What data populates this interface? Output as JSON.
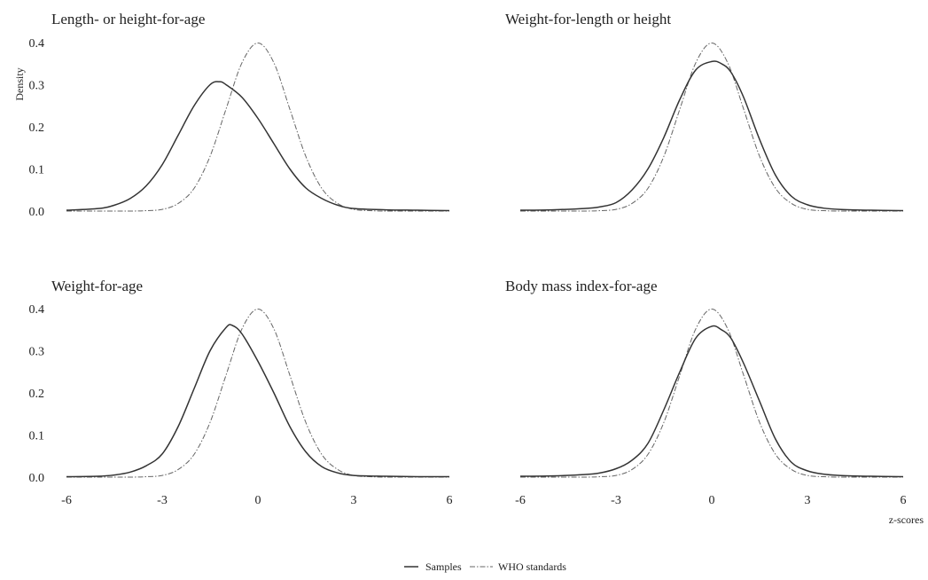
{
  "chart_data": {
    "type": "line",
    "ylabel": "Density",
    "xlabel": "z-scores",
    "xlim": [
      -6,
      6
    ],
    "ylim": [
      0,
      0.4
    ],
    "x_ticks": [
      -6,
      -3,
      0,
      3,
      6
    ],
    "y_ticks": [
      0.0,
      0.1,
      0.2,
      0.3,
      0.4
    ],
    "y_tick_labels": [
      "0.0",
      "0.1",
      "0.2",
      "0.3",
      "0.4"
    ],
    "x_tick_labels": [
      "-6",
      "-3",
      "0",
      "3",
      "6"
    ],
    "legend": {
      "placement": "bottom-center",
      "entries": [
        {
          "name": "Samples",
          "style": "solid"
        },
        {
          "name": "WHO standards",
          "style": "dash-dot"
        }
      ]
    },
    "grid": false,
    "panels": [
      {
        "title": "Length- or height-for-age",
        "series": [
          {
            "name": "Samples",
            "x": [
              -6,
              -5,
              -4.5,
              -4,
              -3.5,
              -3,
              -2.5,
              -2,
              -1.5,
              -1.2,
              -1,
              -0.5,
              0,
              0.5,
              1,
              1.5,
              2,
              2.5,
              3,
              4,
              5,
              6
            ],
            "y": [
              0.002,
              0.006,
              0.014,
              0.03,
              0.06,
              0.11,
              0.18,
              0.25,
              0.3,
              0.307,
              0.3,
              0.27,
              0.22,
              0.16,
              0.1,
              0.055,
              0.03,
              0.014,
              0.006,
              0.003,
              0.002,
              0.001
            ]
          },
          {
            "name": "WHO standards",
            "x": [
              -6,
              -5,
              -4,
              -3.5,
              -3,
              -2.5,
              -2,
              -1.5,
              -1,
              -0.5,
              0,
              0.5,
              1,
              1.5,
              2,
              2.5,
              3,
              3.5,
              4,
              5,
              6
            ],
            "y": [
              0,
              0,
              0,
              0.001,
              0.004,
              0.018,
              0.054,
              0.13,
              0.242,
              0.352,
              0.399,
              0.352,
              0.242,
              0.13,
              0.054,
              0.018,
              0.004,
              0.001,
              0,
              0,
              0
            ]
          }
        ]
      },
      {
        "title": "Weight-for-length or height",
        "series": [
          {
            "name": "Samples",
            "x": [
              -6,
              -5,
              -4,
              -3.5,
              -3,
              -2.5,
              -2,
              -1.5,
              -1,
              -0.5,
              0,
              0.3,
              0.6,
              1,
              1.5,
              2,
              2.5,
              3,
              3.5,
              4,
              5,
              6
            ],
            "y": [
              0.002,
              0.003,
              0.006,
              0.01,
              0.02,
              0.05,
              0.1,
              0.175,
              0.265,
              0.335,
              0.355,
              0.35,
              0.33,
              0.27,
              0.17,
              0.085,
              0.035,
              0.015,
              0.007,
              0.004,
              0.002,
              0.001
            ]
          },
          {
            "name": "WHO standards",
            "x": [
              -6,
              -5,
              -4,
              -3.5,
              -3,
              -2.5,
              -2,
              -1.5,
              -1,
              -0.5,
              0,
              0.5,
              1,
              1.5,
              2,
              2.5,
              3,
              3.5,
              4,
              5,
              6
            ],
            "y": [
              0,
              0,
              0,
              0.001,
              0.004,
              0.018,
              0.054,
              0.13,
              0.242,
              0.352,
              0.399,
              0.352,
              0.242,
              0.13,
              0.054,
              0.018,
              0.004,
              0.001,
              0,
              0,
              0
            ]
          }
        ]
      },
      {
        "title": "Weight-for-age",
        "series": [
          {
            "name": "Samples",
            "x": [
              -6,
              -5,
              -4.5,
              -4,
              -3.5,
              -3,
              -2.5,
              -2,
              -1.5,
              -1,
              -0.8,
              -0.5,
              0,
              0.5,
              1,
              1.5,
              2,
              2.5,
              3,
              4,
              5,
              6
            ],
            "y": [
              0.001,
              0.002,
              0.005,
              0.012,
              0.027,
              0.055,
              0.12,
              0.21,
              0.3,
              0.355,
              0.36,
              0.34,
              0.275,
              0.2,
              0.12,
              0.06,
              0.025,
              0.01,
              0.004,
              0.002,
              0.001,
              0.001
            ]
          },
          {
            "name": "WHO standards",
            "x": [
              -6,
              -5,
              -4,
              -3.5,
              -3,
              -2.5,
              -2,
              -1.5,
              -1,
              -0.5,
              0,
              0.5,
              1,
              1.5,
              2,
              2.5,
              3,
              3.5,
              4,
              5,
              6
            ],
            "y": [
              0,
              0,
              0,
              0.001,
              0.004,
              0.018,
              0.054,
              0.13,
              0.242,
              0.352,
              0.399,
              0.352,
              0.242,
              0.13,
              0.054,
              0.018,
              0.004,
              0.001,
              0,
              0,
              0
            ]
          }
        ]
      },
      {
        "title": "Body mass index-for-age",
        "series": [
          {
            "name": "Samples",
            "x": [
              -6,
              -5,
              -4,
              -3.5,
              -3,
              -2.5,
              -2,
              -1.5,
              -1,
              -0.5,
              0,
              0.3,
              0.6,
              1,
              1.5,
              2,
              2.5,
              3,
              3.5,
              4,
              5,
              6
            ],
            "y": [
              0.002,
              0.003,
              0.006,
              0.01,
              0.02,
              0.04,
              0.08,
              0.16,
              0.25,
              0.33,
              0.358,
              0.35,
              0.33,
              0.27,
              0.18,
              0.09,
              0.035,
              0.015,
              0.007,
              0.004,
              0.002,
              0.001
            ]
          },
          {
            "name": "WHO standards",
            "x": [
              -6,
              -5,
              -4,
              -3.5,
              -3,
              -2.5,
              -2,
              -1.5,
              -1,
              -0.5,
              0,
              0.5,
              1,
              1.5,
              2,
              2.5,
              3,
              3.5,
              4,
              5,
              6
            ],
            "y": [
              0,
              0,
              0,
              0.001,
              0.004,
              0.018,
              0.054,
              0.13,
              0.242,
              0.352,
              0.399,
              0.352,
              0.242,
              0.13,
              0.054,
              0.018,
              0.004,
              0.001,
              0,
              0,
              0
            ]
          }
        ]
      }
    ]
  }
}
